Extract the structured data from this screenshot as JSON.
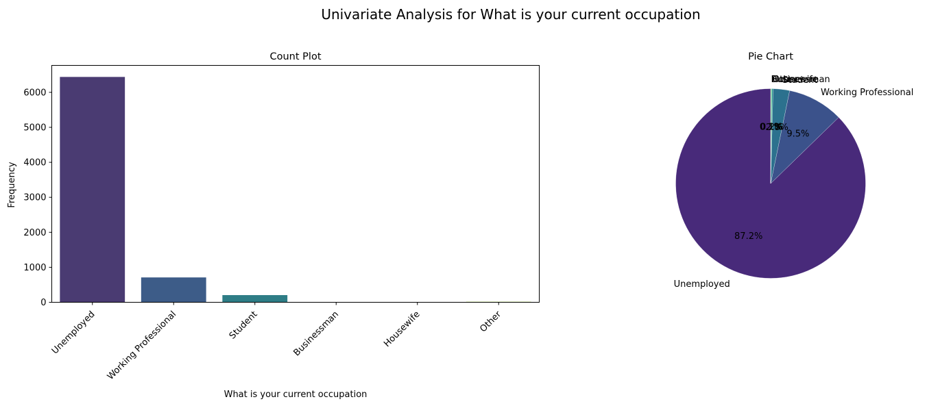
{
  "figure": {
    "title": "Univariate Analysis for What is your current occupation"
  },
  "chart_data": [
    {
      "type": "bar",
      "title": "Count Plot",
      "xlabel": "What is your current occupation",
      "ylabel": "Frequency",
      "categories": [
        "Unemployed",
        "Working Professional",
        "Student",
        "Businessman",
        "Housewife",
        "Other"
      ],
      "values": [
        6440,
        710,
        205,
        7,
        9,
        15
      ],
      "ylim": [
        0,
        6770
      ],
      "yticks": [
        0,
        1000,
        2000,
        3000,
        4000,
        5000,
        6000
      ],
      "colors": [
        "#4a3b72",
        "#3d5c88",
        "#2e7d86",
        "#27a582",
        "#5ec462",
        "#b2dc4e"
      ],
      "grid": false
    },
    {
      "type": "pie",
      "title": "Pie Chart",
      "slices": [
        {
          "label": "Unemployed",
          "value": 87.2,
          "pct_label": "87.2%",
          "color": "#482a7a"
        },
        {
          "label": "Working Professional",
          "value": 9.5,
          "pct_label": "9.5%",
          "color": "#3b528b"
        },
        {
          "label": "Student",
          "value": 2.8,
          "pct_label": "2.8%",
          "color": "#2c718e"
        },
        {
          "label": "Other",
          "value": 0.2,
          "pct_label": "0.2%",
          "color": "#21918c"
        },
        {
          "label": "Housewife",
          "value": 0.1,
          "pct_label": "0.1%",
          "color": "#27ad81"
        },
        {
          "label": "Businessman",
          "value": 0.1,
          "pct_label": "0.1%",
          "color": "#5ec962"
        }
      ],
      "start_angle": 90,
      "direction": "counterclockwise"
    }
  ]
}
